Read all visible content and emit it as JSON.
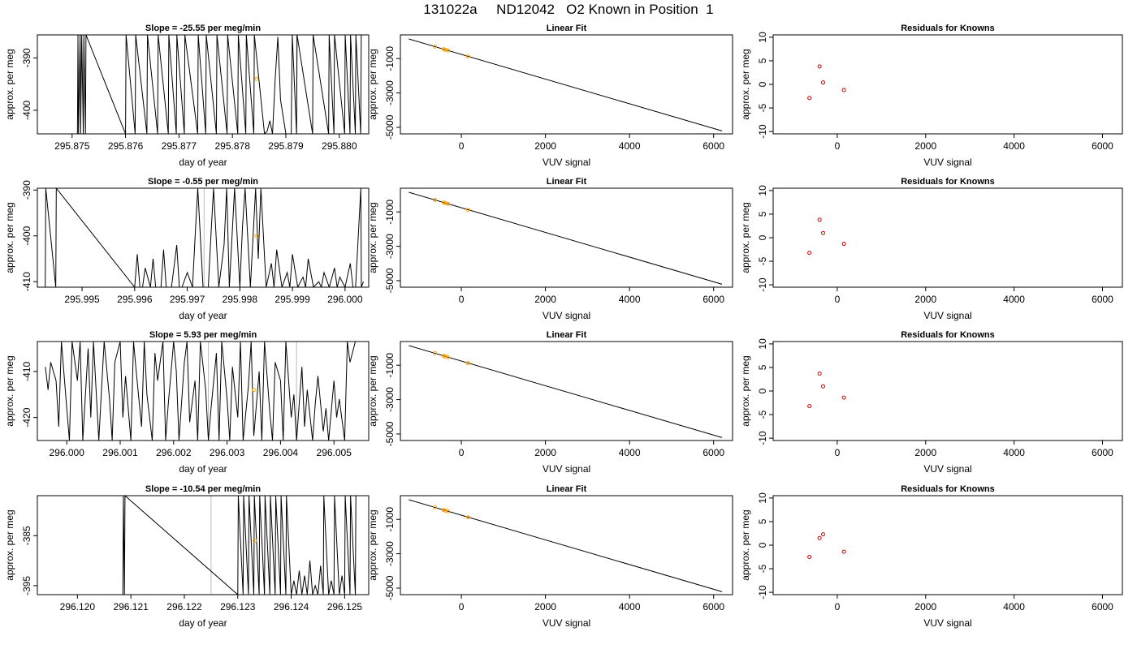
{
  "figure_title": "131022a     ND12042   O2 Known in Position  1",
  "colors": {
    "trace": "#000000",
    "marker": "#FFA500",
    "residual": "#D00000",
    "vline": "#BBBBBB"
  },
  "chart_data": [
    {
      "type": "line",
      "title": "Slope =  -25.55  per meg/min",
      "xlabel": "day of year",
      "ylabel": "approx. per meg",
      "xlim": [
        295.87435,
        295.88055
      ],
      "ylim": [
        -404.5,
        -385.6
      ],
      "xticks": [
        "295.875",
        "295.876",
        "295.877",
        "295.878",
        "295.879",
        "295.880"
      ],
      "yticks": [
        "-390",
        "-400"
      ],
      "marker": {
        "x": 295.87845,
        "y": -394.0
      },
      "gray_lines": [
        295.8792
      ],
      "series": [
        {
          "x": [
            295.8751,
            295.87511,
            295.87512,
            295.87515,
            295.87516,
            295.87518,
            295.87521,
            295.87522,
            295.87525,
            295.87526,
            295.876,
            295.87601,
            295.87618,
            295.87619,
            295.8764,
            295.87641,
            295.8766,
            295.87661,
            295.8768,
            295.87681,
            295.87695,
            295.87696,
            295.8771,
            295.87711,
            295.87735,
            295.87736,
            295.8775,
            295.87751,
            295.8777,
            295.87771,
            295.8779,
            295.87791,
            295.8781,
            295.87811,
            295.87825,
            295.87826,
            295.8784,
            295.87841,
            295.8786,
            295.87865,
            295.8787,
            295.87875,
            295.8788,
            295.87885,
            295.8789,
            295.879,
            295.8791,
            295.87912,
            295.8792,
            295.87921,
            295.8795,
            295.87951,
            295.8798,
            295.87981,
            295.8799,
            295.87991,
            295.8801,
            295.88011,
            295.8802,
            295.88021,
            295.8803,
            295.88031,
            295.8804,
            295.88041
          ],
          "y": [
            -404.5,
            -385.6,
            -404.5,
            -385.6,
            -404.5,
            -385.6,
            -404.5,
            -385.6,
            -404.5,
            -385.6,
            -404.5,
            -385.6,
            -404.5,
            -385.6,
            -404.5,
            -385.6,
            -404.5,
            -385.6,
            -404.5,
            -385.6,
            -404.5,
            -385.6,
            -404.5,
            -385.6,
            -404.5,
            -385.6,
            -404.5,
            -385.6,
            -404.5,
            -385.6,
            -404.5,
            -385.6,
            -404.5,
            -385.6,
            -404.5,
            -385.6,
            -404.5,
            -385.6,
            -404.5,
            -404.0,
            -402.0,
            -404.5,
            -394.0,
            -386.0,
            -398.0,
            -404.5,
            -404.5,
            -385.6,
            -404.5,
            -385.6,
            -404.5,
            -385.6,
            -404.5,
            -385.6,
            -404.5,
            -385.6,
            -404.5,
            -385.6,
            -404.5,
            -385.6,
            -404.5,
            -385.6,
            -404.5,
            -385.6
          ]
        }
      ]
    },
    {
      "type": "line",
      "title": "Slope =  -0.55  per meg/min",
      "xlabel": "day of year",
      "ylabel": "approx. per meg",
      "xlim": [
        295.99415,
        296.00045
      ],
      "ylim": [
        -411.2,
        -389.6
      ],
      "xticks": [
        "295.995",
        "295.996",
        "295.997",
        "295.998",
        "295.999",
        "296.000"
      ],
      "yticks": [
        "-390",
        "-400",
        "-410"
      ],
      "marker": {
        "x": 295.99832,
        "y": -400.0
      },
      "gray_lines": [
        295.99732
      ],
      "series": [
        {
          "x": [
            295.9943,
            295.99431,
            295.9945,
            295.99451,
            295.996,
            295.99605,
            295.9961,
            295.99615,
            295.9962,
            295.9963,
            295.99635,
            295.9964,
            295.9965,
            295.99655,
            295.9966,
            295.9967,
            295.9968,
            295.99685,
            295.9969,
            295.997,
            295.9971,
            295.99715,
            295.9972,
            295.9973,
            295.9974,
            295.99745,
            295.9975,
            295.9976,
            295.9977,
            295.99775,
            295.9978,
            295.9979,
            295.998,
            295.99805,
            295.9981,
            295.9982,
            295.9983,
            295.99835,
            295.9984,
            295.9985,
            295.9986,
            295.99865,
            295.9987,
            295.9988,
            295.9989,
            295.99895,
            295.999,
            295.9991,
            295.9992,
            295.99925,
            295.9993,
            295.9994,
            295.9995,
            295.99955,
            295.9996,
            295.9997,
            295.9998,
            295.99985,
            295.9999,
            296.0,
            296.0001,
            296.00015,
            296.0002,
            296.0003,
            296.00031,
            296.00035
          ],
          "y": [
            -411.2,
            -389.6,
            -411.2,
            -389.6,
            -411.2,
            -404.0,
            -411.2,
            -411.2,
            -407.0,
            -411.2,
            -405.0,
            -411.2,
            -411.2,
            -403.0,
            -411.2,
            -411.2,
            -402.0,
            -411.2,
            -411.2,
            -408.0,
            -411.2,
            -400.0,
            -389.6,
            -411.2,
            -411.2,
            -400.0,
            -389.6,
            -411.2,
            -402.0,
            -389.6,
            -411.2,
            -389.6,
            -411.2,
            -398.0,
            -389.6,
            -411.2,
            -389.6,
            -405.0,
            -389.6,
            -411.2,
            -406.0,
            -411.2,
            -403.0,
            -411.2,
            -408.0,
            -411.2,
            -404.0,
            -411.2,
            -409.0,
            -411.2,
            -405.0,
            -411.2,
            -410.0,
            -411.2,
            -408.0,
            -411.2,
            -407.0,
            -411.2,
            -409.0,
            -411.2,
            -406.0,
            -411.2,
            -411.2,
            -389.6,
            -411.2,
            -410.0
          ]
        }
      ]
    },
    {
      "type": "line",
      "title": "Slope =  5.93  per meg/min",
      "xlabel": "day of year",
      "ylabel": "approx. per meg",
      "xlim": [
        295.99945,
        296.00565
      ],
      "ylim": [
        -425.0,
        -403.5
      ],
      "xticks": [
        "296.000",
        "296.001",
        "296.002",
        "296.003",
        "296.004",
        "296.005"
      ],
      "yticks": [
        "-410",
        "-420"
      ],
      "marker": {
        "x": 296.0035,
        "y": -414.0
      },
      "gray_lines": [
        296.00265,
        296.0043
      ],
      "series": [
        {
          "x": [
            295.9996,
            295.99965,
            295.9997,
            295.9998,
            295.99985,
            295.9999,
            296.0,
            296.00005,
            296.0001,
            296.0002,
            296.00025,
            296.0003,
            296.0004,
            296.00045,
            296.0005,
            296.0006,
            296.00065,
            296.0007,
            296.0008,
            296.00085,
            296.0009,
            296.001,
            296.00105,
            296.0011,
            296.0012,
            296.00125,
            296.0013,
            296.0014,
            296.00145,
            296.0015,
            296.0016,
            296.00165,
            296.0017,
            296.0018,
            296.00185,
            296.0019,
            296.002,
            296.00205,
            296.0021,
            296.0022,
            296.00225,
            296.0023,
            296.0024,
            296.00245,
            296.0025,
            296.0026,
            296.00265,
            296.0027,
            296.0028,
            296.00285,
            296.0029,
            296.003,
            296.00305,
            296.0031,
            296.0032,
            296.00325,
            296.0033,
            296.0034,
            296.00345,
            296.0035,
            296.0036,
            296.00365,
            296.0037,
            296.0038,
            296.00385,
            296.0039,
            296.004,
            296.00405,
            296.0041,
            296.0042,
            296.00425,
            296.0043,
            296.0044,
            296.00445,
            296.0045,
            296.0046,
            296.00465,
            296.0047,
            296.0048,
            296.00485,
            296.0049,
            296.005,
            296.00505,
            296.0051,
            296.0052,
            296.00525,
            296.0053,
            296.0054
          ],
          "y": [
            -409.0,
            -414.0,
            -408.0,
            -412.0,
            -422.0,
            -403.5,
            -418.0,
            -425.0,
            -403.5,
            -412.0,
            -403.5,
            -425.0,
            -405.0,
            -420.0,
            -403.5,
            -425.0,
            -414.0,
            -403.5,
            -416.0,
            -425.0,
            -408.0,
            -403.5,
            -420.0,
            -411.0,
            -425.0,
            -403.5,
            -410.0,
            -422.0,
            -403.5,
            -415.0,
            -425.0,
            -406.0,
            -412.0,
            -403.5,
            -425.0,
            -417.0,
            -403.5,
            -410.0,
            -425.0,
            -408.0,
            -403.5,
            -421.0,
            -412.0,
            -425.0,
            -403.5,
            -414.0,
            -425.0,
            -418.0,
            -406.0,
            -425.0,
            -403.5,
            -416.0,
            -425.0,
            -409.0,
            -420.0,
            -403.5,
            -425.0,
            -413.0,
            -403.5,
            -424.0,
            -410.0,
            -425.0,
            -403.5,
            -419.0,
            -425.0,
            -408.0,
            -412.0,
            -425.0,
            -403.5,
            -420.0,
            -415.0,
            -425.0,
            -409.0,
            -422.0,
            -414.0,
            -425.0,
            -417.0,
            -411.0,
            -423.0,
            -418.0,
            -425.0,
            -412.0,
            -420.0,
            -416.0,
            -425.0,
            -403.5,
            -408.0,
            -403.5
          ]
        }
      ]
    },
    {
      "type": "line",
      "title": "Slope =  -10.54  per meg/min",
      "xlabel": "day of year",
      "ylabel": "approx. per meg",
      "xlim": [
        296.11925,
        296.12545
      ],
      "ylim": [
        -396.8,
        -377.0
      ],
      "xticks": [
        "296.120",
        "296.121",
        "296.122",
        "296.123",
        "296.124",
        "296.125"
      ],
      "yticks": [
        "-385",
        "-395"
      ],
      "marker": {
        "x": 296.12332,
        "y": -386.0
      },
      "gray_lines": [
        296.1225
      ],
      "series": [
        {
          "x": [
            296.12085,
            296.12086,
            296.12088,
            296.12089,
            296.123,
            296.12301,
            296.1231,
            296.12311,
            296.1232,
            296.12321,
            296.1233,
            296.12331,
            296.1234,
            296.12341,
            296.1235,
            296.12351,
            296.1236,
            296.12361,
            296.1237,
            296.12371,
            296.1238,
            296.12381,
            296.1239,
            296.12391,
            296.124,
            296.12405,
            296.1241,
            296.12415,
            296.1242,
            296.12425,
            296.1243,
            296.12435,
            296.1244,
            296.12445,
            296.1245,
            296.12455,
            296.1246,
            296.12461,
            296.1247,
            296.12475,
            296.1248,
            296.12481,
            296.1249,
            296.12495,
            296.125,
            296.12501,
            296.1251,
            296.12511,
            296.1252,
            296.12521
          ],
          "y": [
            -396.8,
            -377.0,
            -396.8,
            -377.0,
            -396.8,
            -377.0,
            -396.8,
            -377.0,
            -396.8,
            -377.0,
            -396.8,
            -377.0,
            -396.8,
            -377.0,
            -396.8,
            -377.0,
            -396.8,
            -377.0,
            -396.8,
            -377.0,
            -396.8,
            -377.0,
            -396.8,
            -377.0,
            -396.8,
            -394.0,
            -396.8,
            -392.0,
            -396.8,
            -393.0,
            -396.8,
            -390.0,
            -396.8,
            -395.0,
            -396.8,
            -391.0,
            -396.8,
            -377.0,
            -396.8,
            -394.0,
            -396.8,
            -377.0,
            -396.8,
            -393.0,
            -396.8,
            -377.0,
            -396.8,
            -377.0,
            -396.8,
            -377.0
          ]
        }
      ]
    },
    {
      "type": "scatter",
      "title": "Linear Fit",
      "xlabel": "VUV signal",
      "ylabel": "approx. per meg",
      "xlim": [
        -1450,
        6450
      ],
      "ylim": [
        -5380,
        380
      ],
      "xticks": [
        "0",
        "2000",
        "4000",
        "6000"
      ],
      "yticks": [
        "-1000",
        "-3000",
        "-5000"
      ],
      "fit_line": {
        "x": [
          -1250,
          6200
        ],
        "y": [
          143,
          -5210
        ]
      },
      "points": {
        "x": [
          -630,
          -420,
          -380,
          -320,
          160
        ],
        "y": [
          -300,
          -455,
          -490,
          -530,
          -880
        ]
      }
    },
    {
      "type": "scatter",
      "title": "Linear Fit",
      "xlabel": "VUV signal",
      "ylabel": "approx. per meg",
      "xlim": [
        -1450,
        6450
      ],
      "ylim": [
        -5380,
        380
      ],
      "xticks": [
        "0",
        "2000",
        "4000",
        "6000"
      ],
      "yticks": [
        "-1000",
        "-3000",
        "-5000"
      ],
      "fit_line": {
        "x": [
          -1250,
          6200
        ],
        "y": [
          143,
          -5210
        ]
      },
      "points": {
        "x": [
          -630,
          -420,
          -380,
          -320,
          160
        ],
        "y": [
          -300,
          -455,
          -490,
          -530,
          -880
        ]
      }
    },
    {
      "type": "scatter",
      "title": "Linear Fit",
      "xlabel": "VUV signal",
      "ylabel": "approx. per meg",
      "xlim": [
        -1450,
        6450
      ],
      "ylim": [
        -5380,
        380
      ],
      "xticks": [
        "0",
        "2000",
        "4000",
        "6000"
      ],
      "yticks": [
        "-1000",
        "-3000",
        "-5000"
      ],
      "fit_line": {
        "x": [
          -1250,
          6200
        ],
        "y": [
          143,
          -5210
        ]
      },
      "points": {
        "x": [
          -630,
          -420,
          -380,
          -320,
          160
        ],
        "y": [
          -300,
          -455,
          -490,
          -530,
          -880
        ]
      }
    },
    {
      "type": "scatter",
      "title": "Linear Fit",
      "xlabel": "VUV signal",
      "ylabel": "approx. per meg",
      "xlim": [
        -1450,
        6450
      ],
      "ylim": [
        -5380,
        380
      ],
      "xticks": [
        "0",
        "2000",
        "4000",
        "6000"
      ],
      "yticks": [
        "-1000",
        "-3000",
        "-5000"
      ],
      "fit_line": {
        "x": [
          -1250,
          6200
        ],
        "y": [
          143,
          -5210
        ]
      },
      "points": {
        "x": [
          -630,
          -420,
          -380,
          -320,
          160
        ],
        "y": [
          -300,
          -455,
          -490,
          -530,
          -880
        ]
      }
    },
    {
      "type": "scatter",
      "title": "Residuals for Knowns",
      "xlabel": "VUV signal",
      "ylabel": "approx. per meg",
      "xlim": [
        -1450,
        6450
      ],
      "ylim": [
        -10.5,
        10.5
      ],
      "xticks": [
        "0",
        "2000",
        "4000",
        "6000"
      ],
      "yticks": [
        "10",
        "5",
        "0",
        "-5",
        "-10"
      ],
      "points": {
        "x": [
          -630,
          -400,
          -320,
          150
        ],
        "y": [
          -2.9,
          3.8,
          0.4,
          -1.2
        ]
      }
    },
    {
      "type": "scatter",
      "title": "Residuals for Knowns",
      "xlabel": "VUV signal",
      "ylabel": "approx. per meg",
      "xlim": [
        -1450,
        6450
      ],
      "ylim": [
        -10.5,
        10.5
      ],
      "xticks": [
        "0",
        "2000",
        "4000",
        "6000"
      ],
      "yticks": [
        "10",
        "5",
        "0",
        "-5",
        "-10"
      ],
      "points": {
        "x": [
          -630,
          -400,
          -320,
          150
        ],
        "y": [
          -3.2,
          3.8,
          1.0,
          -1.3
        ]
      }
    },
    {
      "type": "scatter",
      "title": "Residuals for Knowns",
      "xlabel": "VUV signal",
      "ylabel": "approx. per meg",
      "xlim": [
        -1450,
        6450
      ],
      "ylim": [
        -10.5,
        10.5
      ],
      "xticks": [
        "0",
        "2000",
        "4000",
        "6000"
      ],
      "yticks": [
        "10",
        "5",
        "0",
        "-5",
        "-10"
      ],
      "points": {
        "x": [
          -630,
          -400,
          -320,
          150
        ],
        "y": [
          -3.2,
          3.7,
          1.0,
          -1.4
        ]
      }
    },
    {
      "type": "scatter",
      "title": "Residuals for Knowns",
      "xlabel": "VUV signal",
      "ylabel": "approx. per meg",
      "xlim": [
        -1450,
        6450
      ],
      "ylim": [
        -10.5,
        10.5
      ],
      "xticks": [
        "0",
        "2000",
        "4000",
        "6000"
      ],
      "yticks": [
        "10",
        "5",
        "0",
        "-5",
        "-10"
      ],
      "points": {
        "x": [
          -630,
          -400,
          -320,
          150
        ],
        "y": [
          -2.5,
          1.5,
          2.3,
          -1.4
        ]
      }
    }
  ]
}
